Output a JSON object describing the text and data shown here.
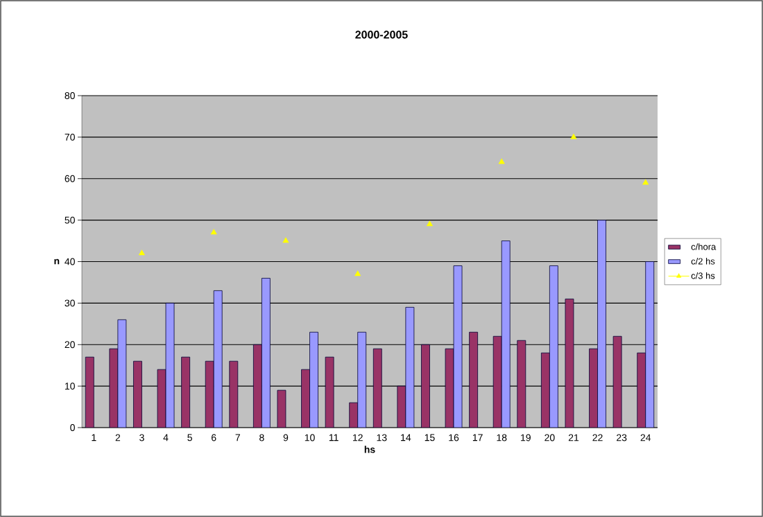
{
  "chart_data": {
    "type": "bar",
    "title": "2000-2005",
    "xlabel": "hs",
    "ylabel": "n",
    "categories": [
      "1",
      "2",
      "3",
      "4",
      "5",
      "6",
      "7",
      "8",
      "9",
      "10",
      "11",
      "12",
      "13",
      "14",
      "15",
      "16",
      "17",
      "18",
      "19",
      "20",
      "21",
      "22",
      "23",
      "24"
    ],
    "series": [
      {
        "name": "c/hora",
        "color": "#993366",
        "values": [
          17,
          19,
          16,
          14,
          17,
          16,
          16,
          20,
          9,
          14,
          17,
          6,
          19,
          10,
          20,
          19,
          23,
          22,
          21,
          18,
          31,
          19,
          22,
          18
        ]
      },
      {
        "name": "c/2 hs",
        "color": "#9999ff",
        "values": [
          null,
          26,
          null,
          30,
          null,
          33,
          null,
          36,
          null,
          23,
          null,
          23,
          null,
          29,
          null,
          39,
          null,
          45,
          null,
          39,
          null,
          50,
          null,
          40
        ]
      },
      {
        "name": "c/3 hs",
        "color": "#ffff00",
        "type": "scatter",
        "marker": "triangle",
        "x": [
          "3",
          "6",
          "9",
          "12",
          "15",
          "18",
          "21",
          "24"
        ],
        "values": [
          42,
          47,
          45,
          37,
          49,
          64,
          70,
          59
        ]
      }
    ],
    "ylim": [
      0,
      80
    ],
    "yticks": [
      0,
      10,
      20,
      30,
      40,
      50,
      60,
      70,
      80
    ],
    "grid": "y",
    "legend": "right"
  }
}
